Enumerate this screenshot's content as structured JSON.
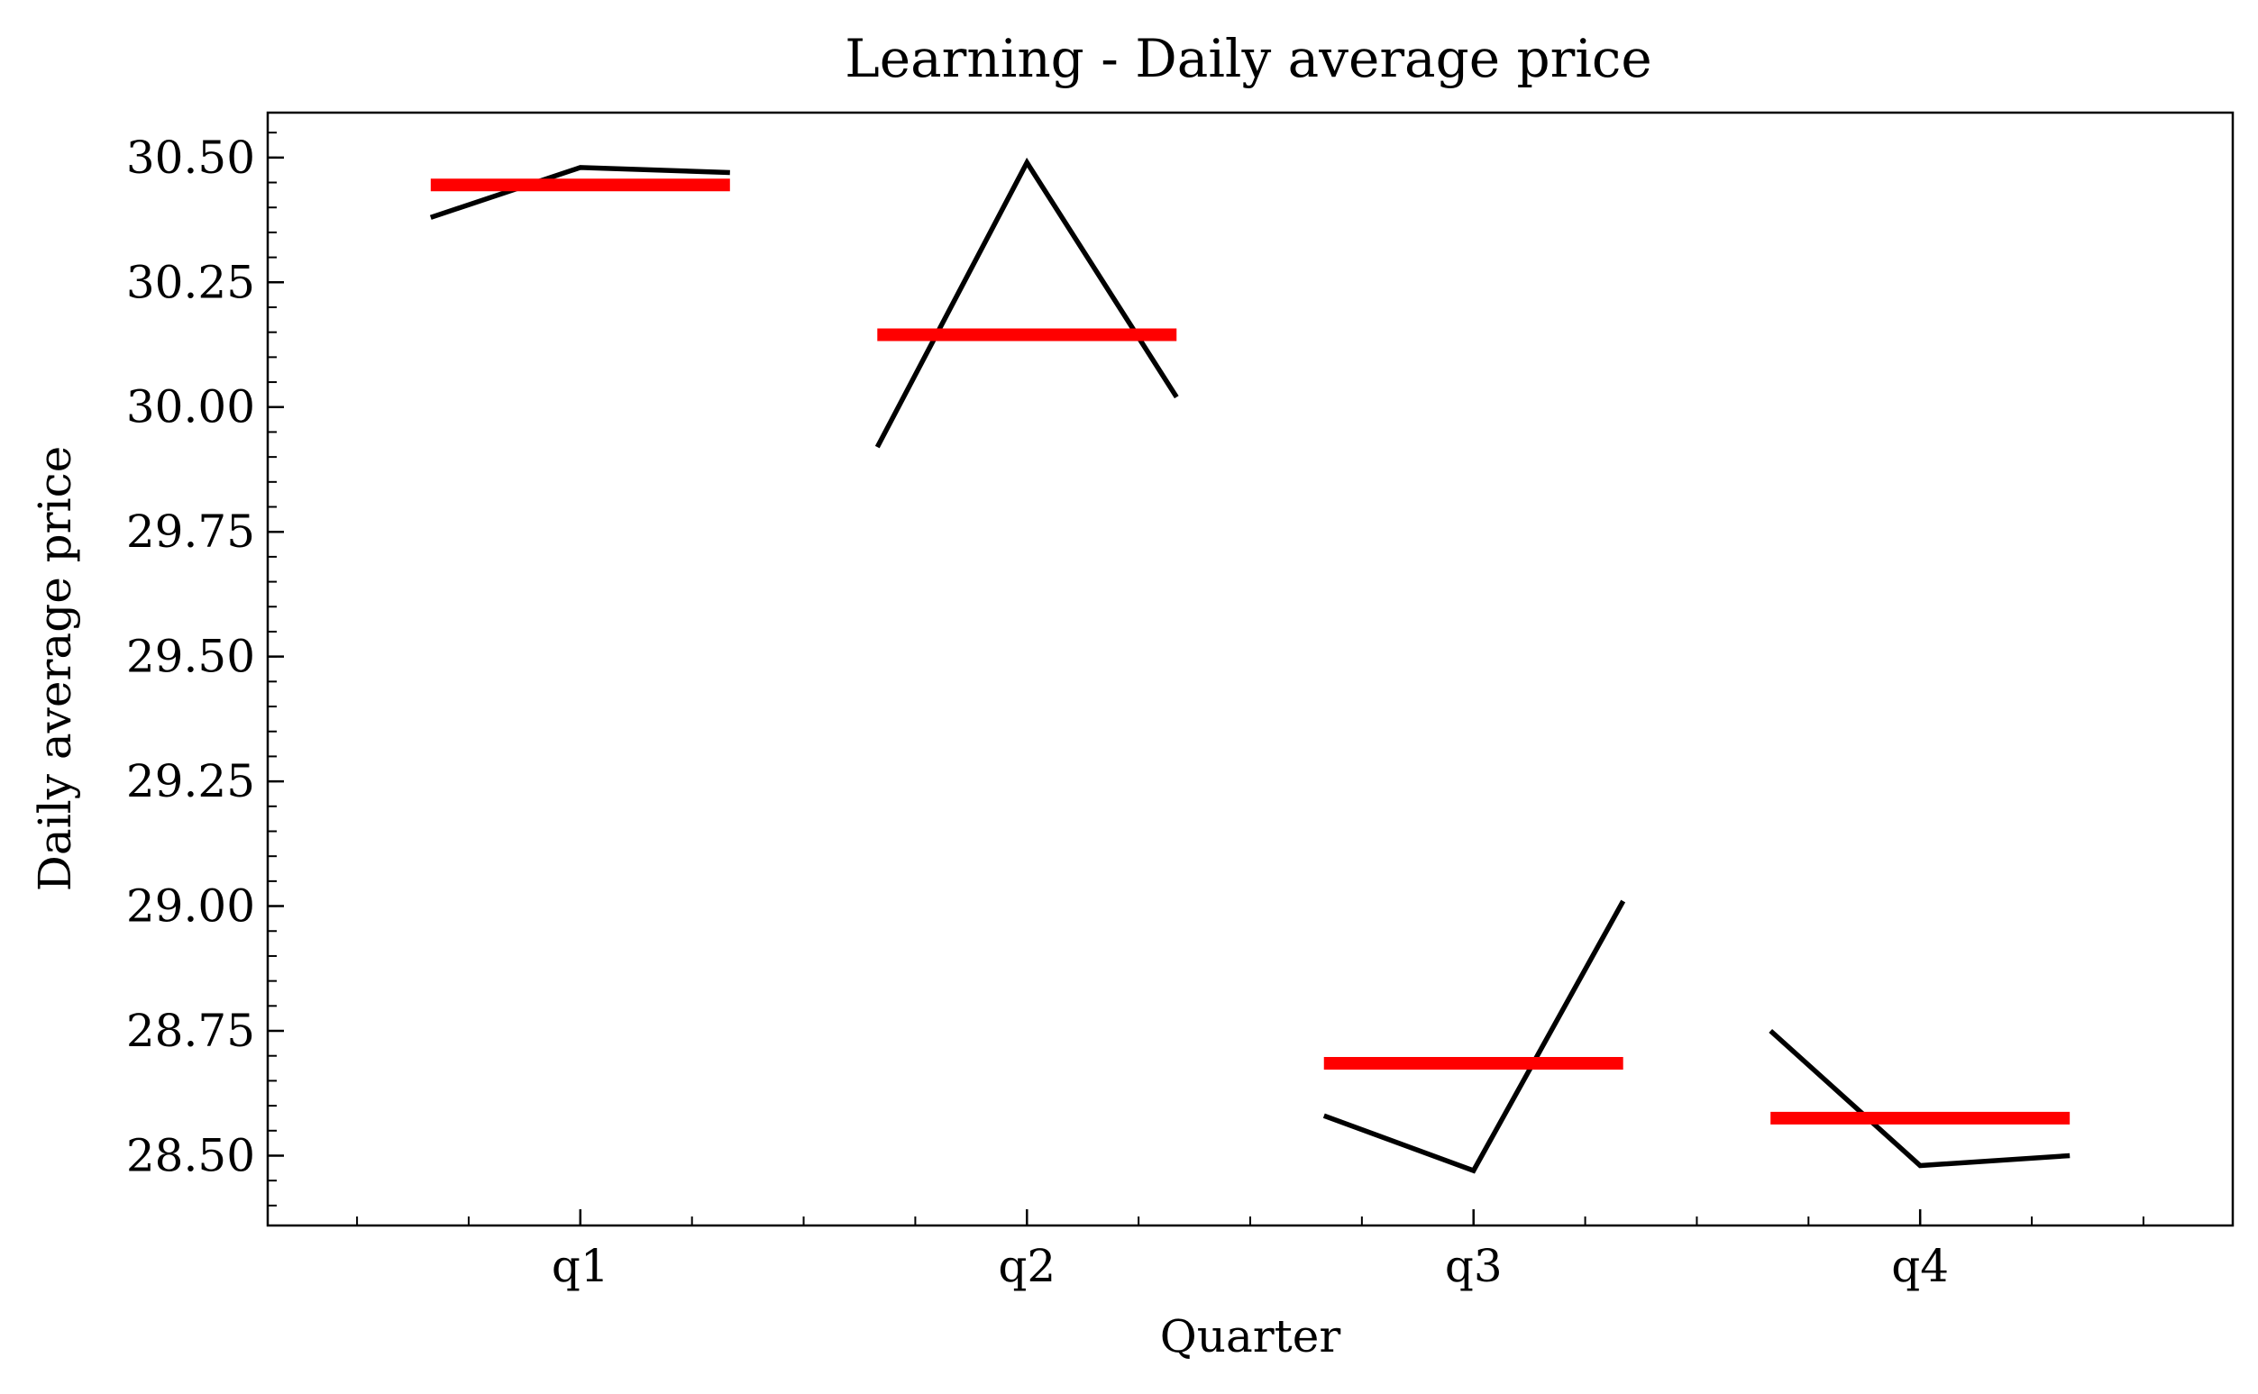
{
  "chart_data": {
    "type": "line",
    "title": "Learning - Daily average price",
    "xlabel": "Quarter",
    "ylabel": "Daily average price",
    "categories": [
      "q1",
      "q2",
      "q3",
      "q4"
    ],
    "ylim": [
      28.36,
      30.59
    ],
    "yticks": [
      28.5,
      28.75,
      29.0,
      29.25,
      29.5,
      29.75,
      30.0,
      30.25,
      30.5
    ],
    "ytick_labels": [
      "28.50",
      "28.75",
      "29.00",
      "29.25",
      "29.50",
      "29.75",
      "30.00",
      "30.25",
      "30.50"
    ],
    "grid": false,
    "legend": false,
    "series": [
      {
        "kind": "seasonal-subseries",
        "color": "#000000",
        "groups": [
          {
            "category": "q1",
            "values": [
              30.38,
              30.48,
              30.47
            ]
          },
          {
            "category": "q2",
            "values": [
              29.92,
              30.49,
              30.02
            ]
          },
          {
            "category": "q3",
            "values": [
              28.58,
              28.47,
              29.01
            ]
          },
          {
            "category": "q4",
            "values": [
              28.75,
              28.48,
              28.5
            ]
          }
        ]
      },
      {
        "kind": "group-mean",
        "color": "#ff0000",
        "values": [
          30.445,
          30.145,
          28.685,
          28.575
        ]
      }
    ]
  }
}
